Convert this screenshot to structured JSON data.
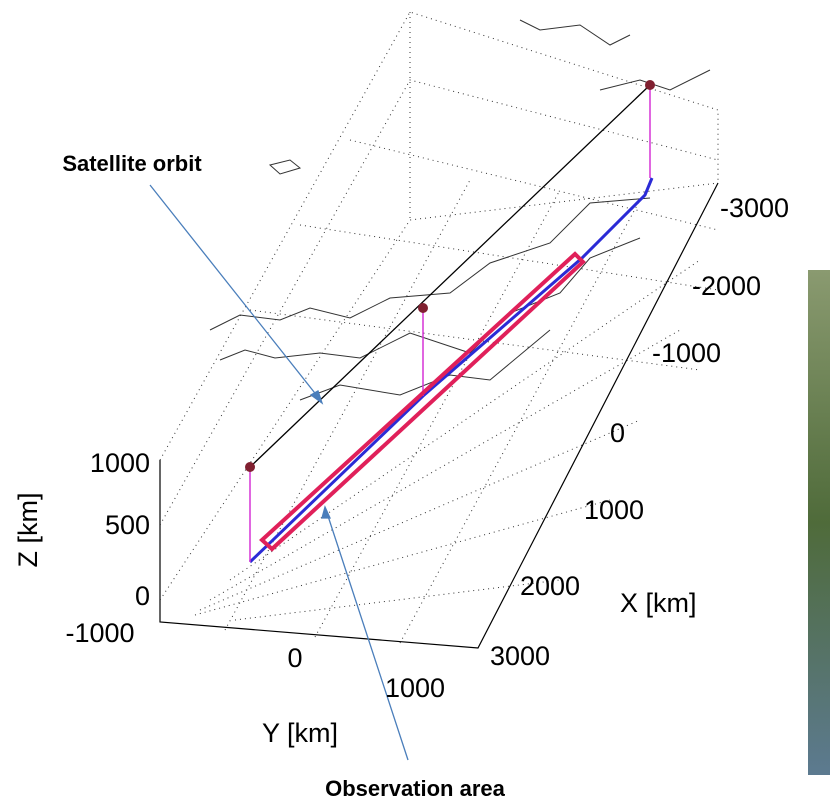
{
  "annotations": {
    "orbit": "Satellite orbit",
    "area": "Observation area"
  },
  "axes": {
    "z": {
      "label": "Z [km]",
      "ticks": [
        "1000",
        "500",
        "0"
      ]
    },
    "y": {
      "label": "Y [km]",
      "ticks": [
        "-1000",
        "0",
        "1000"
      ]
    },
    "x": {
      "label": "X [km]",
      "ticks": [
        "-3000",
        "-2000",
        "-1000",
        "0",
        "1000",
        "2000",
        "3000"
      ]
    }
  }
}
